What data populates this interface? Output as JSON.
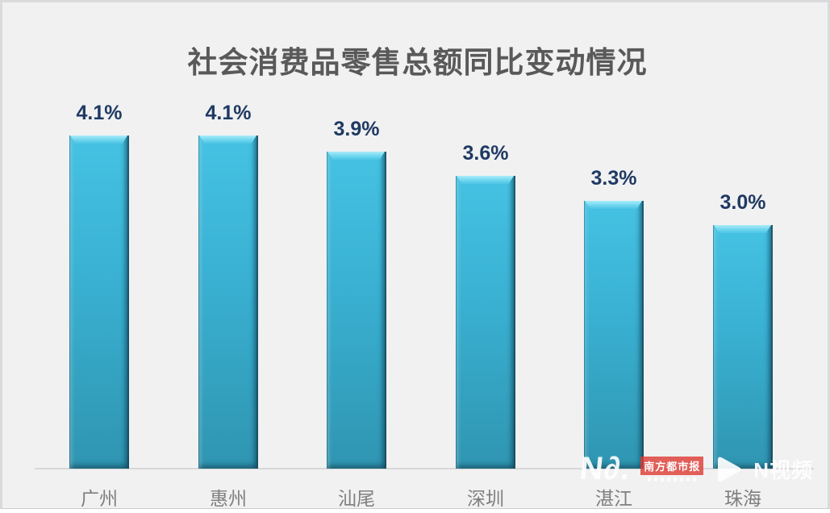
{
  "chart_data": {
    "type": "bar",
    "title": "社会消费品零售总额同比变动情况",
    "categories": [
      "广州",
      "惠州",
      "汕尾",
      "深圳",
      "湛江",
      "珠海"
    ],
    "values": [
      4.1,
      4.1,
      3.9,
      3.6,
      3.3,
      3.0
    ],
    "value_labels": [
      "4.1%",
      "4.1%",
      "3.9%",
      "3.6%",
      "3.3%",
      "3.0%"
    ],
    "xlabel": "",
    "ylabel": "",
    "ylim": [
      0,
      4.3
    ],
    "grid": false,
    "legend": "none",
    "bar_color_top": "#45c2e3",
    "bar_color_bottom": "#2f95b1",
    "value_label_color": "#1f3a63",
    "category_label_color": "#7f7f7f",
    "title_color": "#595959",
    "background_color": "#f1f1f2",
    "axis_line_color": "#d7d7d9"
  },
  "watermark": {
    "nd_logo_text": "N∂.",
    "press_name": "南方都市报",
    "nvideo_label": "N视频"
  }
}
